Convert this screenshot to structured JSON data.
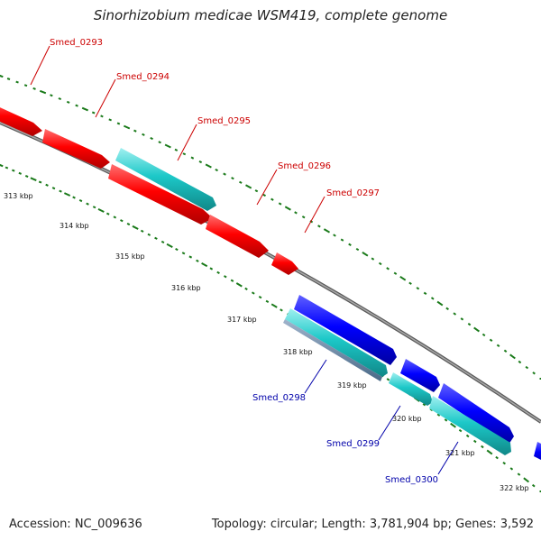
{
  "title": "Sinorhizobium medicae WSM419, complete genome",
  "footer": {
    "accession": "Accession: NC_009636",
    "topology": "Topology: circular; Length: 3,781,904 bp; Genes: 3,592"
  },
  "colors": {
    "forward_cds": "#ff0000",
    "reverse_cds": "#0000ff",
    "feature_cyan": "#1cc8c8",
    "backbone": "#8a8a8a",
    "tick": "#1a7a1a",
    "forward_label": "#cc0000",
    "reverse_label": "#0000aa"
  },
  "ruler_labels": [
    "313 kbp",
    "314 kbp",
    "315 kbp",
    "316 kbp",
    "317 kbp",
    "318 kbp",
    "319 kbp",
    "320 kbp",
    "321 kbp",
    "322 kbp"
  ],
  "gene_labels": {
    "forward": [
      "Smed_0293",
      "Smed_0294",
      "Smed_0295",
      "Smed_0296",
      "Smed_0297"
    ],
    "reverse": [
      "Smed_0298",
      "Smed_0299",
      "Smed_0300"
    ]
  }
}
